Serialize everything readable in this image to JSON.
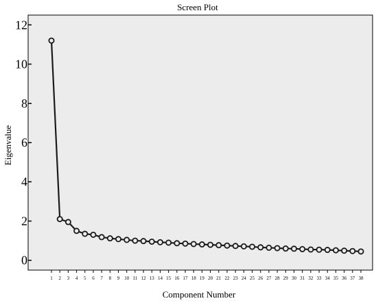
{
  "chart_data": {
    "type": "line",
    "title": "Screen Plot",
    "xlabel": "Component Number",
    "ylabel": "Eigenvalue",
    "ylim": [
      -0.5,
      12.5
    ],
    "y_ticks": [
      0,
      2,
      4,
      6,
      8,
      10,
      12
    ],
    "grid": false,
    "legend": "none",
    "x": [
      1,
      2,
      3,
      4,
      5,
      6,
      7,
      8,
      9,
      10,
      11,
      12,
      13,
      14,
      15,
      16,
      17,
      18,
      19,
      20,
      21,
      22,
      23,
      24,
      25,
      26,
      27,
      28,
      29,
      30,
      31,
      32,
      33,
      34,
      35,
      36,
      37,
      38
    ],
    "values": [
      11.2,
      2.1,
      1.95,
      1.5,
      1.35,
      1.3,
      1.18,
      1.12,
      1.08,
      1.04,
      1.0,
      0.98,
      0.95,
      0.92,
      0.9,
      0.87,
      0.85,
      0.83,
      0.81,
      0.79,
      0.77,
      0.75,
      0.73,
      0.71,
      0.69,
      0.66,
      0.64,
      0.62,
      0.6,
      0.59,
      0.57,
      0.55,
      0.54,
      0.53,
      0.51,
      0.49,
      0.47,
      0.45
    ],
    "colors": {
      "plot_background": "#ececec",
      "line": "#1a1a1a",
      "marker_fill": "#ececec"
    }
  }
}
